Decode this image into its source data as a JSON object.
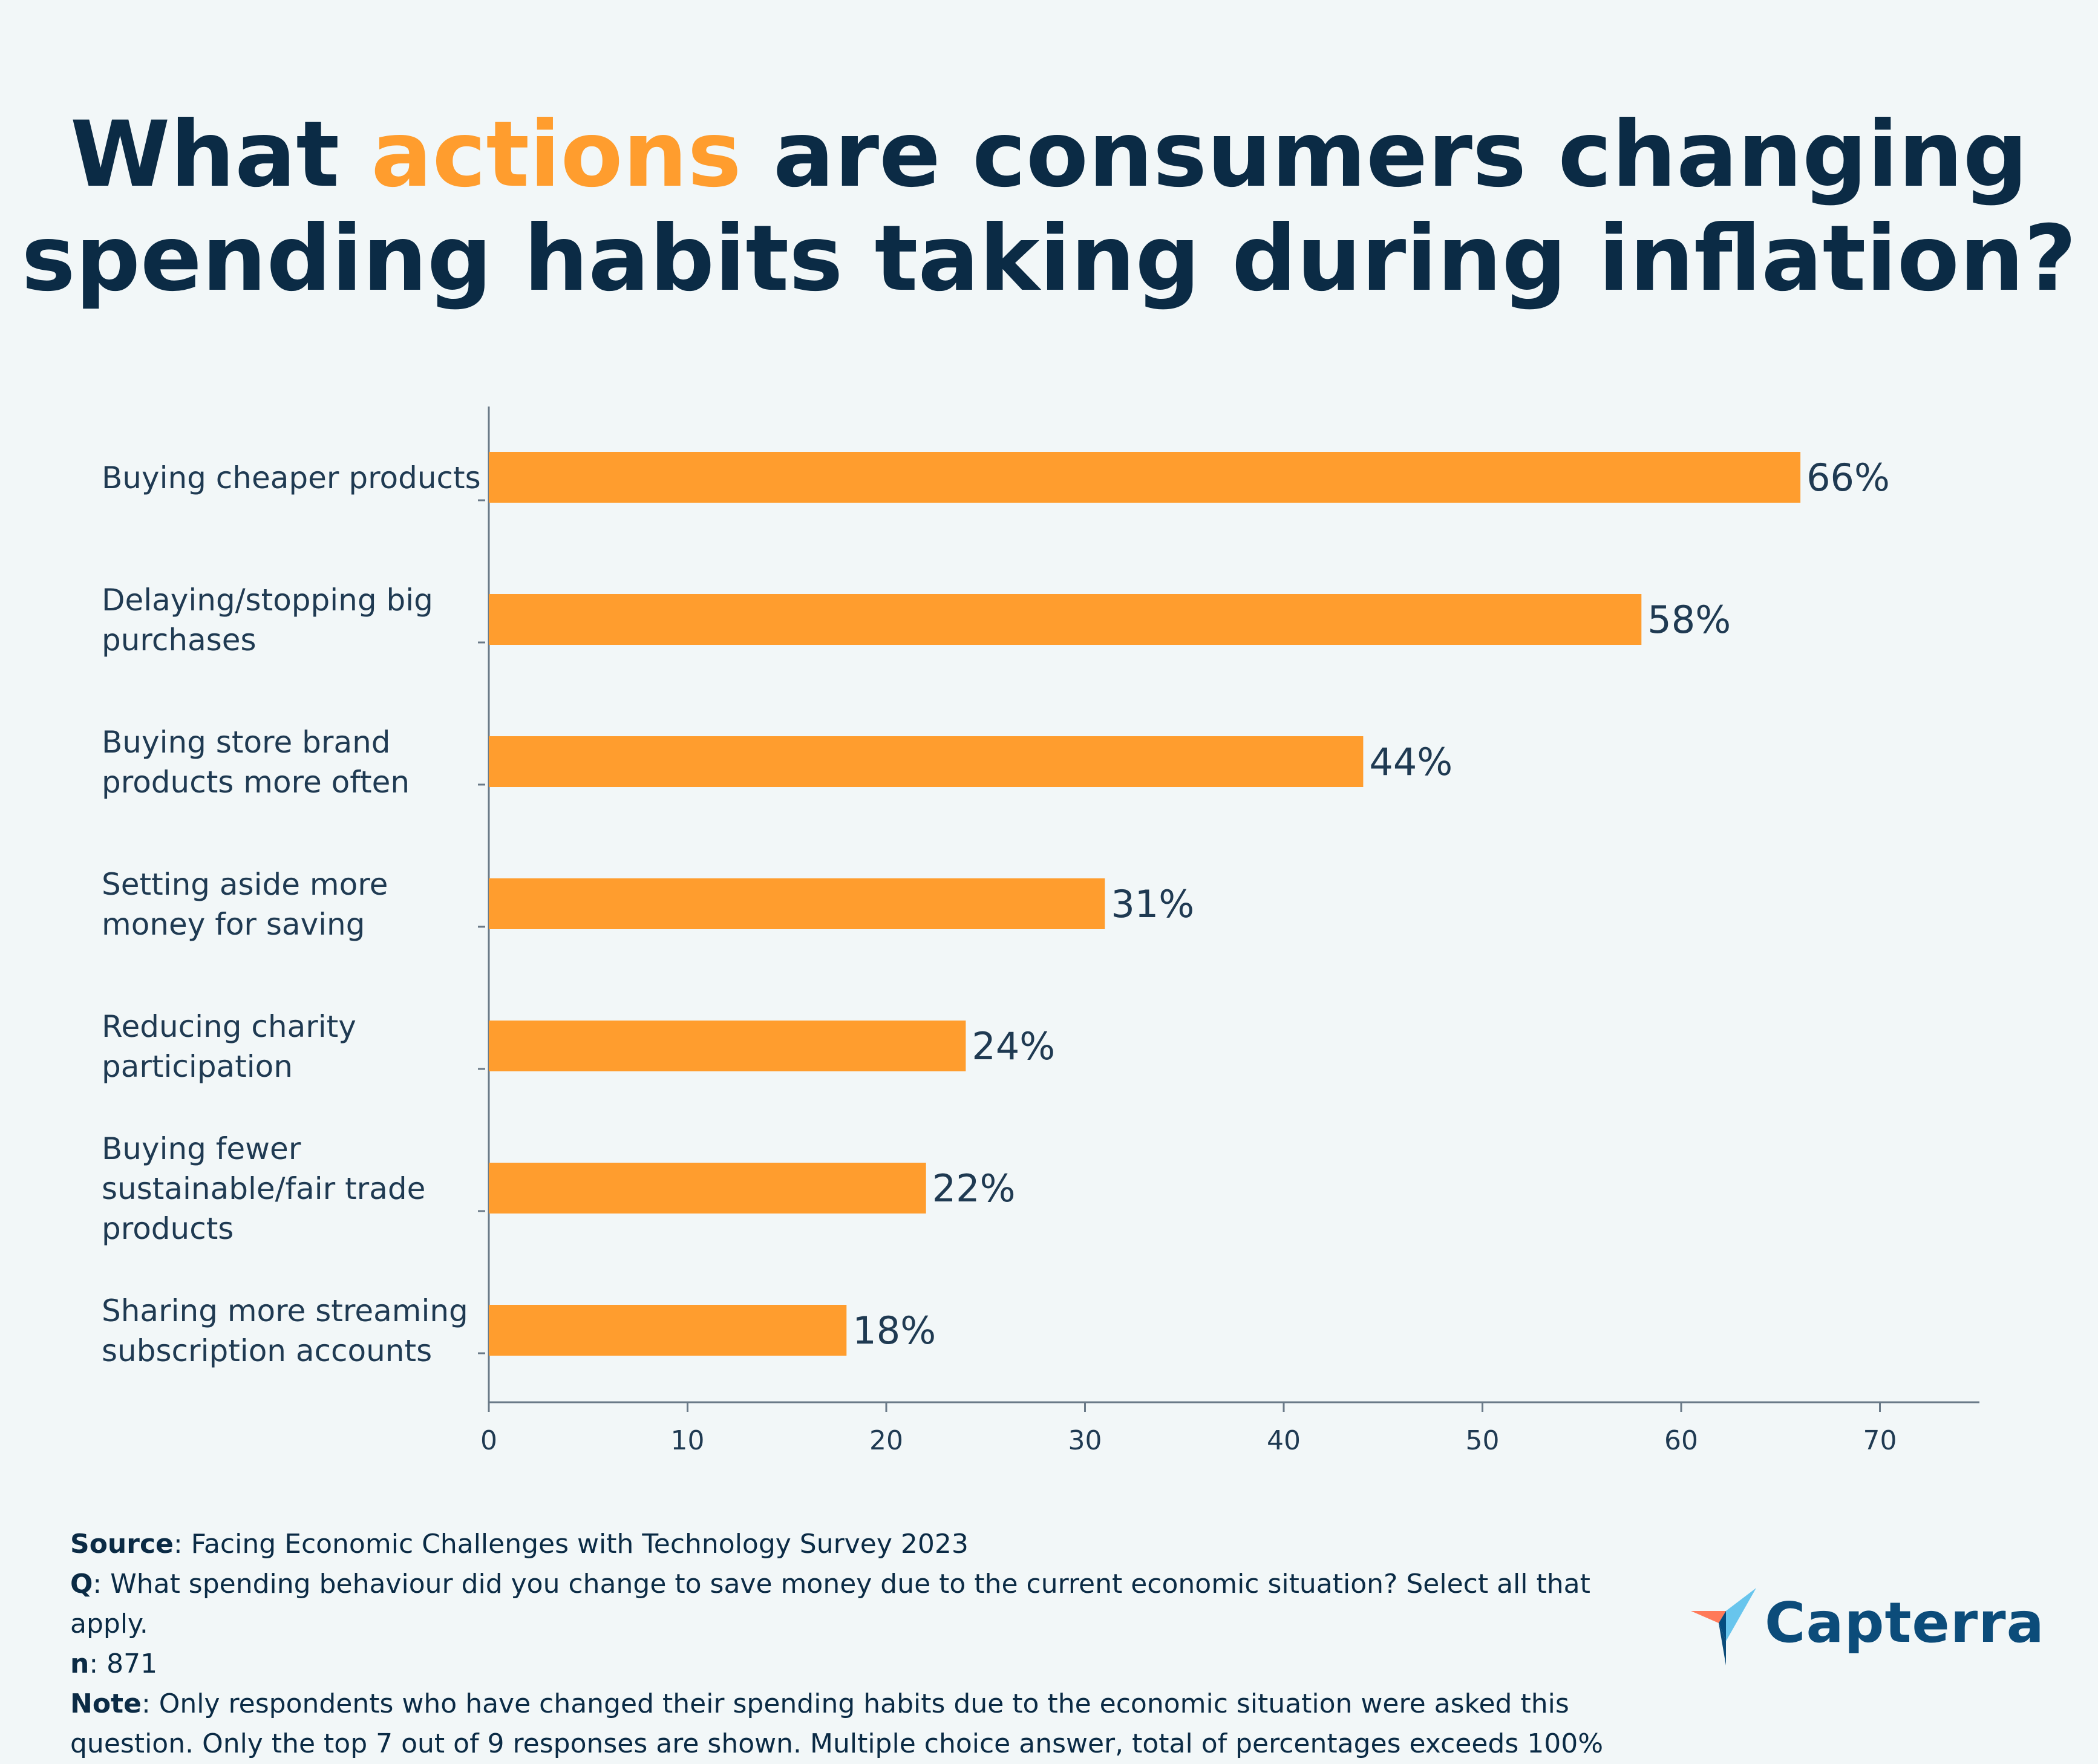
{
  "title": {
    "before": "What ",
    "accent": "actions",
    "line1_after": " are consumers changing",
    "line2": "spending habits taking during inflation?"
  },
  "colors": {
    "bar": "#ff9d2e",
    "accent": "#ff9d2e",
    "text": "#0b2b45",
    "background": "#f2f7f8"
  },
  "chart_data": {
    "type": "bar",
    "orientation": "horizontal",
    "categories": [
      "Buying cheaper products",
      "Delaying/stopping big purchases",
      "Buying store brand products more often",
      "Setting aside more money for saving",
      "Reducing charity participation",
      "Buying fewer sustainable/fair trade products",
      "Sharing more streaming subscription accounts"
    ],
    "category_lines": [
      [
        "Buying cheaper products"
      ],
      [
        "Delaying/stopping big",
        "purchases"
      ],
      [
        "Buying store brand",
        "products more often"
      ],
      [
        "Setting aside more",
        "money for saving"
      ],
      [
        "Reducing charity",
        "participation"
      ],
      [
        "Buying fewer",
        "sustainable/fair trade",
        "products"
      ],
      [
        "Sharing more streaming",
        "subscription accounts"
      ]
    ],
    "values": [
      66,
      58,
      44,
      31,
      24,
      22,
      18
    ],
    "data_labels": [
      "66%",
      "58%",
      "44%",
      "31%",
      "24%",
      "22%",
      "18%"
    ],
    "xticks": [
      0,
      10,
      20,
      30,
      40,
      50,
      60,
      70
    ],
    "xlim": [
      0,
      75
    ],
    "xlabel": "",
    "ylabel": "",
    "legend": "none",
    "grid": false
  },
  "footer": {
    "source_label": "Source",
    "source_text": ": Facing Economic Challenges with Technology Survey 2023",
    "q_label": "Q",
    "q_text": ": What spending behaviour did you change to save money due to the current economic situation? Select all that apply.",
    "n_label": "n",
    "n_text": ": 871",
    "note_label": "Note",
    "note_text": ": Only respondents who have changed their spending habits due to the economic situation were asked this question. Only the top 7 out of 9 responses are shown. Multiple choice answer, total of percentages exceeds 100%"
  },
  "logo": {
    "text": "Capterra",
    "icon": "capterra-arrow-icon"
  }
}
